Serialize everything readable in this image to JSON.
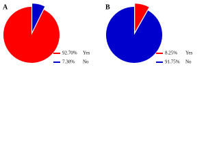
{
  "chart_data": [
    {
      "type": "pie",
      "title": "A",
      "categories": [
        "Yes",
        "No"
      ],
      "values": [
        92.7,
        7.3
      ],
      "value_labels": [
        "92.70%",
        "7.30%"
      ],
      "colors": [
        "#ff0000",
        "#0000cc"
      ],
      "explode": [
        0,
        0.12
      ],
      "counterclock": true
    },
    {
      "type": "pie",
      "title": "B",
      "categories": [
        "Yes",
        "No"
      ],
      "values": [
        8.25,
        91.75
      ],
      "value_labels": [
        "8.25%",
        "91.75%"
      ],
      "colors": [
        "#ff0000",
        "#0000cc"
      ],
      "explode": [
        0.12,
        0
      ],
      "counterclock": false
    }
  ]
}
